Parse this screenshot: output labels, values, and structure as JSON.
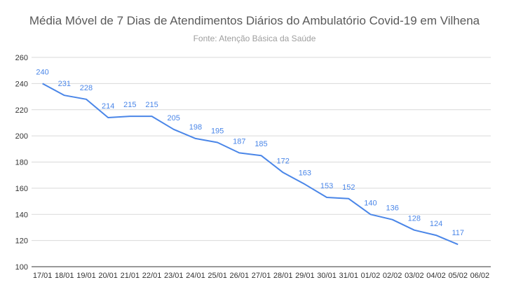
{
  "chart_data": {
    "type": "line",
    "title": "Média Móvel de 7 Dias de Atendimentos Diários do Ambulatório Covid-19 em Vilhena",
    "subtitle": "Fonte: Atenção Básica da Saúde",
    "xlabel": "",
    "ylabel": "",
    "ylim": [
      100,
      260
    ],
    "yticks": [
      100,
      120,
      140,
      160,
      180,
      200,
      220,
      240,
      260
    ],
    "grid": true,
    "categories": [
      "17/01",
      "18/01",
      "19/01",
      "20/01",
      "21/01",
      "22/01",
      "23/01",
      "24/01",
      "25/01",
      "26/01",
      "27/01",
      "28/01",
      "29/01",
      "30/01",
      "31/01",
      "01/02",
      "02/02",
      "03/02",
      "04/02",
      "05/02",
      "06/02"
    ],
    "series": [
      {
        "color": "#4a86e8",
        "values": [
          240,
          231,
          228,
          214,
          215,
          215,
          205,
          198,
          195,
          187,
          185,
          172,
          163,
          153,
          152,
          140,
          136,
          128,
          124,
          117,
          null
        ]
      }
    ]
  }
}
